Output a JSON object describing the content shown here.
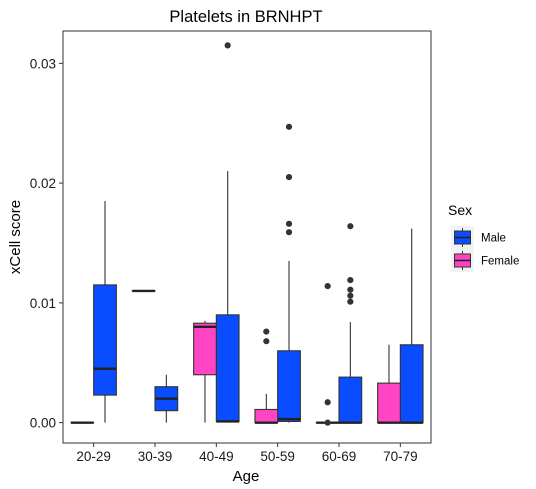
{
  "chart_data": {
    "type": "boxplot",
    "title": "Platelets in BRNHPT",
    "xlabel": "Age",
    "ylabel": "xCell score",
    "ylim": [
      -0.0017,
      0.0327
    ],
    "yticks": [
      0.0,
      0.01,
      0.02,
      0.03
    ],
    "ytick_labels": [
      "0.00",
      "0.01",
      "0.02",
      "0.03"
    ],
    "grid": false,
    "categories": [
      "20-29",
      "30-39",
      "40-49",
      "50-59",
      "60-69",
      "70-79"
    ],
    "legend": {
      "title": "Sex",
      "position": "right",
      "entries": [
        "Male",
        "Female"
      ]
    },
    "series": [
      {
        "name": "Male",
        "color": "#0a4cff",
        "boxes": [
          {
            "category": "20-29",
            "whisker_low": 0.0,
            "q1": 0.0023,
            "median": 0.0045,
            "q3": 0.0115,
            "whisker_high": 0.0185,
            "outliers": []
          },
          {
            "category": "30-39",
            "whisker_low": 0.0,
            "q1": 0.001,
            "median": 0.002,
            "q3": 0.003,
            "whisker_high": 0.004,
            "outliers": []
          },
          {
            "category": "40-49",
            "whisker_low": 0.0,
            "q1": 0.0001,
            "median": 0.0001,
            "q3": 0.009,
            "whisker_high": 0.021,
            "outliers": [
              0.0315
            ]
          },
          {
            "category": "50-59",
            "whisker_low": 0.0,
            "q1": 0.0001,
            "median": 0.0003,
            "q3": 0.006,
            "whisker_high": 0.0135,
            "outliers": [
              0.0159,
              0.0166,
              0.0205,
              0.0247
            ]
          },
          {
            "category": "60-69",
            "whisker_low": 0.0,
            "q1": 0.0,
            "median": 0.0,
            "q3": 0.0038,
            "whisker_high": 0.0084,
            "outliers": [
              0.0101,
              0.0106,
              0.0111,
              0.0119,
              0.0164
            ]
          },
          {
            "category": "70-79",
            "whisker_low": 0.0,
            "q1": 0.0,
            "median": 0.0,
            "q3": 0.0065,
            "whisker_high": 0.0162,
            "outliers": []
          }
        ]
      },
      {
        "name": "Female",
        "color": "#ff45c4",
        "boxes": [
          {
            "category": "20-29",
            "whisker_low": 0.0,
            "q1": 0.0,
            "median": 0.0,
            "q3": 0.0,
            "whisker_high": 0.0,
            "outliers": []
          },
          {
            "category": "30-39",
            "whisker_low": 0.011,
            "q1": 0.011,
            "median": 0.011,
            "q3": 0.011,
            "whisker_high": 0.011,
            "outliers": []
          },
          {
            "category": "40-49",
            "whisker_low": 0.0,
            "q1": 0.004,
            "median": 0.008,
            "q3": 0.0083,
            "whisker_high": 0.0085,
            "outliers": []
          },
          {
            "category": "50-59",
            "whisker_low": 0.0,
            "q1": 0.0,
            "median": 0.0,
            "q3": 0.0011,
            "whisker_high": 0.0024,
            "outliers": [
              0.0068,
              0.0076
            ]
          },
          {
            "category": "60-69",
            "whisker_low": 0.0,
            "q1": 0.0,
            "median": 0.0,
            "q3": 0.0,
            "whisker_high": 0.0,
            "outliers": [
              0.0,
              0.0017,
              0.0114
            ]
          },
          {
            "category": "70-79",
            "whisker_low": 0.0,
            "q1": 0.0,
            "median": 0.0,
            "q3": 0.0033,
            "whisker_high": 0.0065,
            "outliers": []
          }
        ]
      }
    ]
  }
}
